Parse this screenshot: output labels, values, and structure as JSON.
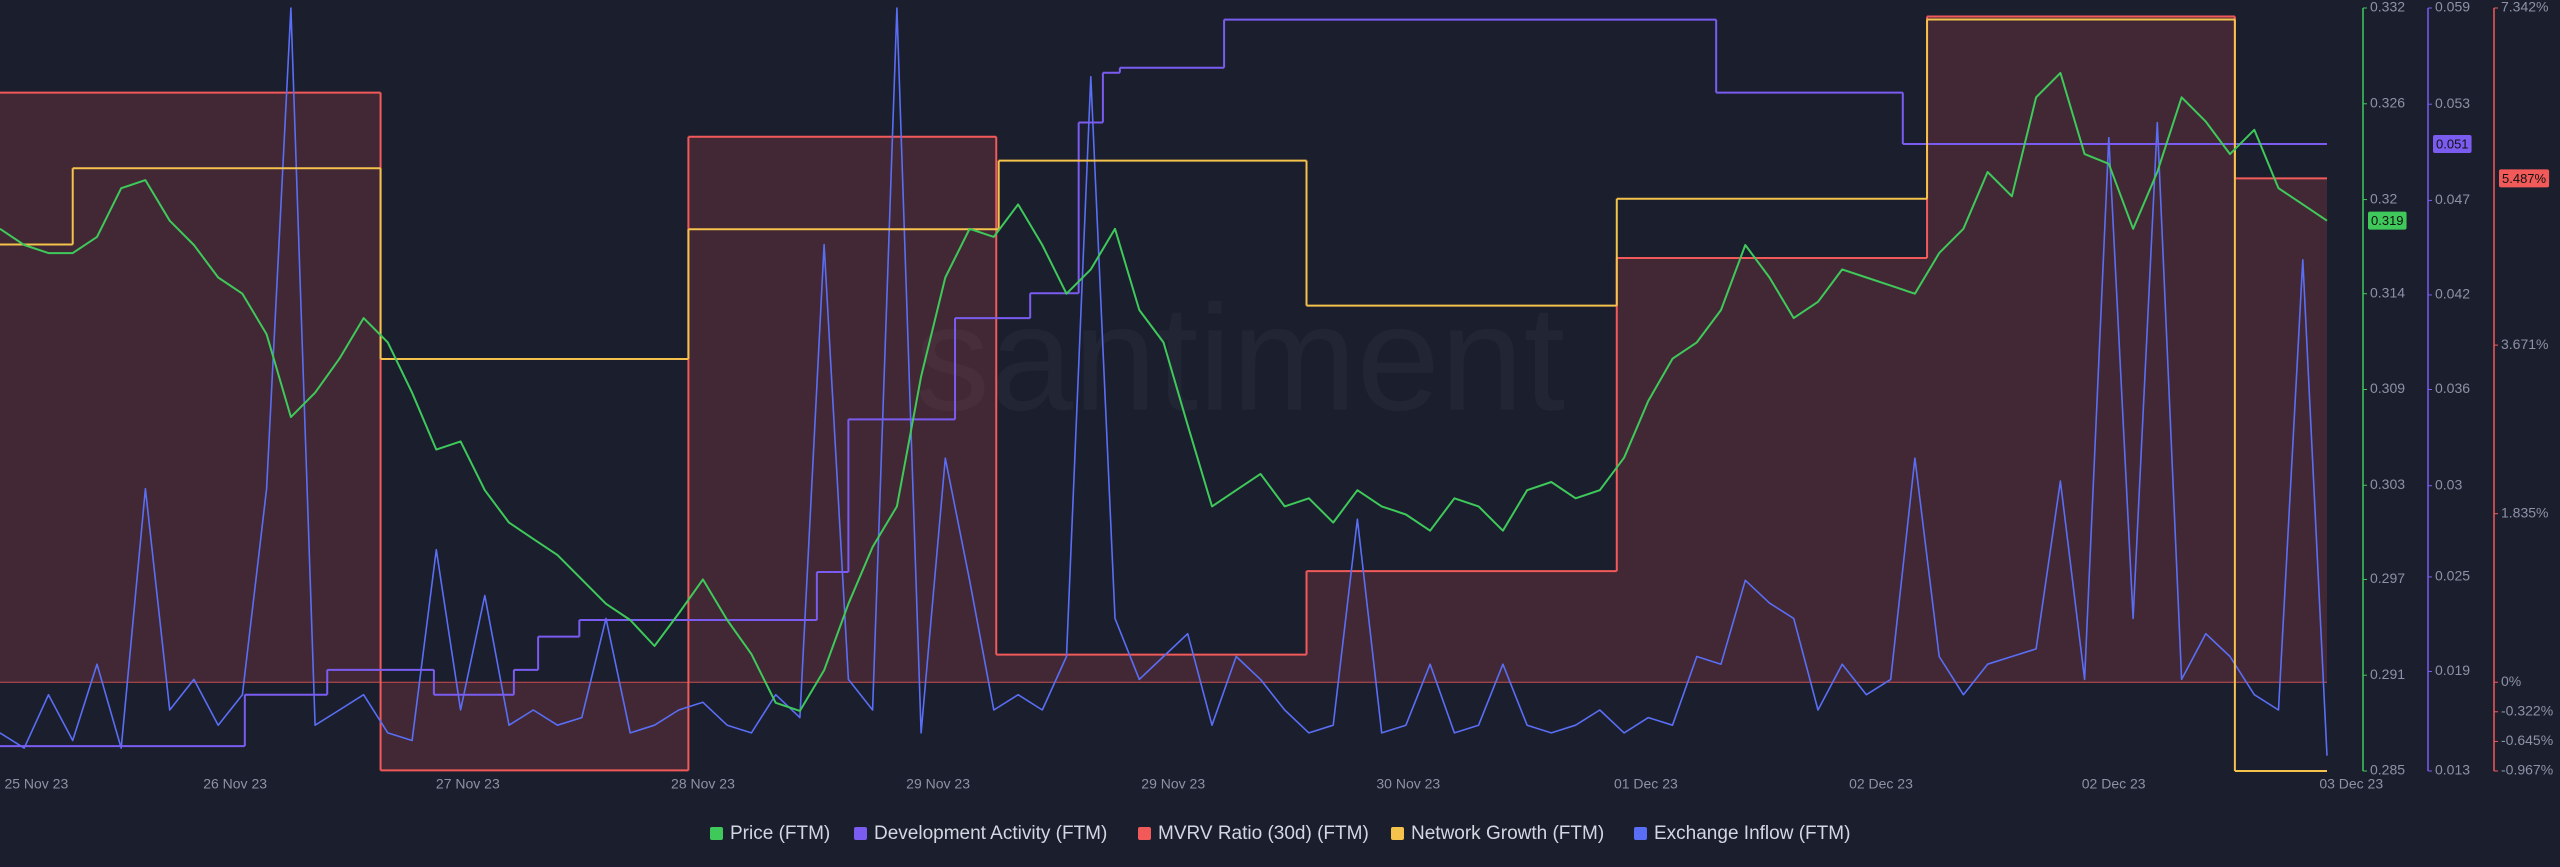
{
  "chart_data": {
    "type": "line",
    "watermark": "santiment",
    "x": [
      0,
      1,
      2,
      3,
      4,
      5,
      6,
      7,
      8,
      9,
      10,
      11,
      12,
      13,
      14,
      15,
      16,
      17,
      18,
      19,
      20,
      21,
      22,
      23,
      24,
      25,
      26,
      27,
      28,
      29,
      30,
      31,
      32,
      33,
      34,
      35,
      36,
      37,
      38,
      39,
      40,
      41,
      42,
      43,
      44,
      45,
      46,
      47,
      48,
      49,
      50,
      51,
      52,
      53,
      54,
      55,
      56,
      57,
      58,
      59,
      60,
      61,
      62,
      63,
      64,
      65,
      66,
      67,
      68,
      69,
      70,
      71,
      72,
      73,
      74,
      75,
      76,
      77,
      78,
      79,
      80,
      81,
      82,
      83,
      84,
      85,
      86,
      87,
      88,
      89,
      90,
      91,
      92,
      93,
      94,
      95,
      96
    ],
    "xlim": [
      0,
      96
    ],
    "xticks": [
      {
        "value": 1.5,
        "label": "25 Nov 23"
      },
      {
        "value": 9.7,
        "label": "26 Nov 23"
      },
      {
        "value": 19.3,
        "label": "27 Nov 23"
      },
      {
        "value": 29,
        "label": "28 Nov 23"
      },
      {
        "value": 38.7,
        "label": "29 Nov 23"
      },
      {
        "value": 48.4,
        "label": "29 Nov 23"
      },
      {
        "value": 58.1,
        "label": "30 Nov 23"
      },
      {
        "value": 67.9,
        "label": "01 Dec 23"
      },
      {
        "value": 77.6,
        "label": "02 Dec 23"
      },
      {
        "value": 87.2,
        "label": "02 Dec 23"
      },
      {
        "value": 97,
        "label": "03 Dec 23"
      }
    ],
    "ylim": [
      0.285,
      0.332
    ],
    "yticks": [
      0.285,
      {
        "value": 0.2909,
        "label": "0.291"
      },
      {
        "value": 0.2968,
        "label": "0.297"
      },
      {
        "value": 0.3026,
        "label": "0.303"
      },
      {
        "value": 0.3085,
        "label": "0.309"
      },
      {
        "value": 0.3144,
        "label": "0.314"
      },
      {
        "value": 0.3202,
        "label": "0.32"
      },
      {
        "value": 0.3261,
        "label": "0.326"
      },
      0.332
    ],
    "y2lim": [
      0.013,
      0.059
    ],
    "y2ticks": [
      0.013,
      0.019,
      {
        "value": 0.0247,
        "label": "0.025"
      },
      {
        "value": 0.0302,
        "label": "0.03"
      },
      0.036,
      {
        "value": 0.0417,
        "label": "0.042"
      },
      {
        "value": 0.0474,
        "label": "0.047"
      },
      {
        "value": 0.0532,
        "label": "0.053"
      },
      0.059
    ],
    "y3lim": [
      -0.967,
      7.342
    ],
    "y3ticks": [
      {
        "value": -0.967,
        "label": "-0.967%"
      },
      {
        "value": -0.645,
        "label": "-0.645%"
      },
      {
        "value": -0.322,
        "label": "-0.322%"
      },
      {
        "value": 0,
        "label": "0%"
      },
      {
        "value": 1.835,
        "label": "1.835%"
      },
      {
        "value": 3.671,
        "label": "3.671%"
      },
      {
        "value": 7.342,
        "label": "7.342%"
      }
    ],
    "y4lim": [
      0,
      100
    ],
    "series": [
      {
        "name": "Price (FTM)",
        "color": "#3fc95a",
        "shape": "line",
        "badge": "0.319",
        "values": [
          0.3184,
          0.3174,
          0.3169,
          0.3169,
          0.3179,
          0.3209,
          0.3214,
          0.3189,
          0.3174,
          0.3154,
          0.3144,
          0.3119,
          0.3068,
          0.3083,
          0.3104,
          0.3129,
          0.3114,
          0.3083,
          0.3048,
          0.3053,
          0.3023,
          0.3003,
          0.2993,
          0.2983,
          0.2968,
          0.2953,
          0.2943,
          0.2927,
          0.2947,
          0.2968,
          0.2943,
          0.2922,
          0.2892,
          0.2887,
          0.2912,
          0.2953,
          0.2988,
          0.3013,
          0.3093,
          0.3154,
          0.3184,
          0.3179,
          0.3199,
          0.3174,
          0.3144,
          0.3159,
          0.3184,
          0.3134,
          0.3114,
          0.3063,
          0.3013,
          0.3023,
          0.3033,
          0.3013,
          0.3018,
          0.3003,
          0.3023,
          0.3013,
          0.3008,
          0.2998,
          0.3018,
          0.3013,
          0.2998,
          0.3023,
          0.3028,
          0.3018,
          0.3023,
          0.3043,
          0.3078,
          0.3104,
          0.3114,
          0.3134,
          0.3174,
          0.3154,
          0.3129,
          0.3139,
          0.3159,
          0.3154,
          0.3149,
          0.3144,
          0.3169,
          0.3184,
          0.3219,
          0.3204,
          0.3265,
          0.328,
          0.323,
          0.3224,
          0.3184,
          0.3219,
          0.3265,
          0.325,
          0.323,
          0.3245,
          0.3209,
          0.3199,
          0.3189
        ]
      },
      {
        "name": "Development Activity (FTM)",
        "color": "#7b5cf0",
        "shape": "step",
        "axis": "y2",
        "badge": "0.051",
        "x": [
          0,
          10.1,
          13.5,
          17.9,
          21.2,
          22.2,
          23.9,
          33.7,
          35,
          39.4,
          42.5,
          44.5,
          45.5,
          46.2,
          50.5,
          70.8,
          78.5
        ],
        "values": [
          0.0145,
          0.0176,
          0.0191,
          0.0176,
          0.0191,
          0.0211,
          0.0221,
          0.025,
          0.0342,
          0.0403,
          0.0418,
          0.0521,
          0.0551,
          0.0554,
          0.0583,
          0.0539,
          0.0508
        ]
      },
      {
        "name": "MVRV Ratio (30d) (FTM)",
        "color": "#f25a5a",
        "shape": "step",
        "axis": "y3",
        "fill": true,
        "badge": "5.487%",
        "x": [
          0,
          15.7,
          28.4,
          41.1,
          53.9,
          66.7,
          79.5,
          92.2
        ],
        "values": [
          6.42,
          -0.96,
          5.94,
          0.3,
          1.21,
          4.62,
          7.25,
          5.487
        ]
      },
      {
        "name": "Network Growth (FTM)",
        "color": "#f5c24c",
        "shape": "step",
        "axis": "y4",
        "x": [
          0,
          3,
          15.7,
          28.4,
          41.2,
          53.9,
          66.7,
          79.5,
          92.2
        ],
        "values": [
          69,
          79,
          54,
          71,
          80,
          61,
          75,
          98.5,
          0
        ]
      },
      {
        "name": "Exchange Inflow (FTM)",
        "color": "#5a6ef5",
        "shape": "line",
        "axis": "y4",
        "values": [
          5,
          3,
          10,
          4,
          14,
          3,
          37,
          8,
          12,
          6,
          10,
          37,
          100,
          6,
          8,
          10,
          5,
          4,
          29,
          8,
          23,
          6,
          8,
          6,
          7,
          20,
          5,
          6,
          8,
          9,
          6,
          5,
          10,
          7,
          69,
          12,
          8,
          100,
          5,
          41,
          25,
          8,
          10,
          8,
          15,
          91,
          20,
          12,
          15,
          18,
          6,
          15,
          12,
          8,
          5,
          6,
          33,
          5,
          6,
          14,
          5,
          6,
          14,
          6,
          5,
          6,
          8,
          5,
          7,
          6,
          15,
          14,
          25,
          22,
          20,
          8,
          14,
          10,
          12,
          41,
          15,
          10,
          14,
          15,
          16,
          38,
          12,
          83,
          20,
          85,
          12,
          18,
          15,
          10,
          8,
          67,
          2
        ]
      }
    ]
  }
}
